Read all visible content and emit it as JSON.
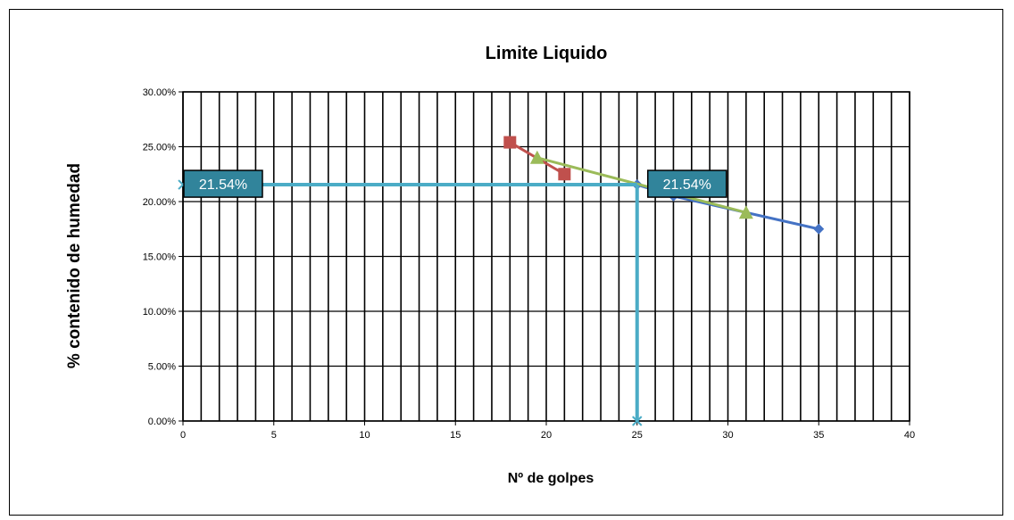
{
  "chart_data": {
    "type": "line",
    "title": "Limite Liquido",
    "xlabel": "Nº de golpes",
    "ylabel": "% contenido  de humedad",
    "xlim": [
      0,
      40
    ],
    "ylim": [
      0,
      0.3
    ],
    "x_tick_labels": [
      "0",
      "5",
      "10",
      "15",
      "20",
      "25",
      "30",
      "35",
      "40"
    ],
    "y_tick_labels": [
      "0.00%",
      "5.00%",
      "10.00%",
      "15.00%",
      "20.00%",
      "25.00%",
      "30.00%"
    ],
    "grid": true,
    "legend": "none",
    "series": [
      {
        "color": "#4472c4",
        "marker": "diamond",
        "points": [
          [
            25,
            0.2154
          ],
          [
            27,
            0.205
          ],
          [
            35,
            0.175
          ]
        ]
      },
      {
        "color": "#c0504d",
        "marker": "square",
        "points": [
          [
            18,
            0.254
          ],
          [
            21,
            0.225
          ]
        ]
      },
      {
        "color": "#9bbb59",
        "marker": "triangle",
        "points": [
          [
            19.5,
            0.24
          ],
          [
            31,
            0.19
          ]
        ]
      }
    ],
    "reference_lines": {
      "color": "#4bacc6",
      "x": 25,
      "y": 0.2154
    },
    "annotations": [
      {
        "text": "21.54%",
        "anchor": "y-axis"
      },
      {
        "text": "21.54%",
        "anchor": "point"
      }
    ]
  }
}
